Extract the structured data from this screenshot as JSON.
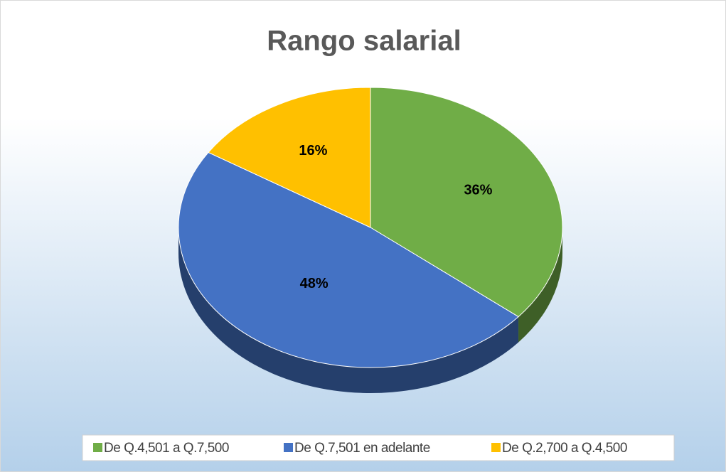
{
  "chart_data": {
    "type": "pie",
    "title": "Rango salarial",
    "categories": [
      "De Q.4,501 a Q.7,500",
      "De Q.7,501 en adelante",
      "De Q.2,700 a Q.4,500"
    ],
    "values": [
      36,
      48,
      16
    ],
    "value_labels": [
      "36%",
      "48%",
      "16%"
    ],
    "colors": [
      "#70ad47",
      "#4472c4",
      "#ffc000"
    ],
    "legend": "bottom"
  }
}
